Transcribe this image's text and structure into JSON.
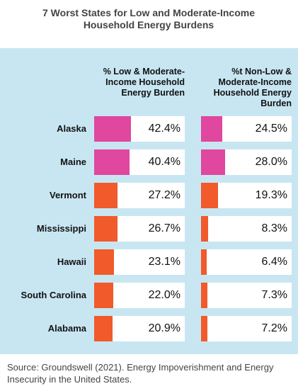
{
  "chart_data": {
    "type": "bar",
    "title": "7 Worst States for Low and Moderate-Income Household Energy Burdens",
    "categories": [
      "Alaska",
      "Maine",
      "Vermont",
      "Mississippi",
      "Hawaii",
      "South Carolina",
      "Alabama"
    ],
    "series": [
      {
        "name": "% Low & Moderate-Income Household Energy Burden",
        "colors": [
          "#e0479e",
          "#e0479e",
          "#f15a2b",
          "#f15a2b",
          "#f15a2b",
          "#f15a2b",
          "#f15a2b"
        ],
        "values": [
          42.4,
          40.4,
          27.2,
          26.7,
          23.1,
          22.0,
          20.9
        ],
        "value_labels": [
          "42.4%",
          "40.4%",
          "27.2%",
          "26.7%",
          "23.1%",
          "22.0%",
          "20.9%"
        ]
      },
      {
        "name": "%t Non-Low & Moderate-Income Household Energy Burden",
        "colors": [
          "#e0479e",
          "#e0479e",
          "#f15a2b",
          "#f15a2b",
          "#f15a2b",
          "#f15a2b",
          "#f15a2b"
        ],
        "values": [
          24.5,
          28.0,
          19.3,
          8.3,
          6.4,
          7.3,
          7.2
        ],
        "value_labels": [
          "24.5%",
          "28.0%",
          "19.3%",
          "8.3%",
          "6.4%",
          "7.3%",
          "7.2%"
        ]
      }
    ],
    "source": "Source: Groundswell (2021). Energy Impoverishment and Energy Insecurity in the United States."
  }
}
